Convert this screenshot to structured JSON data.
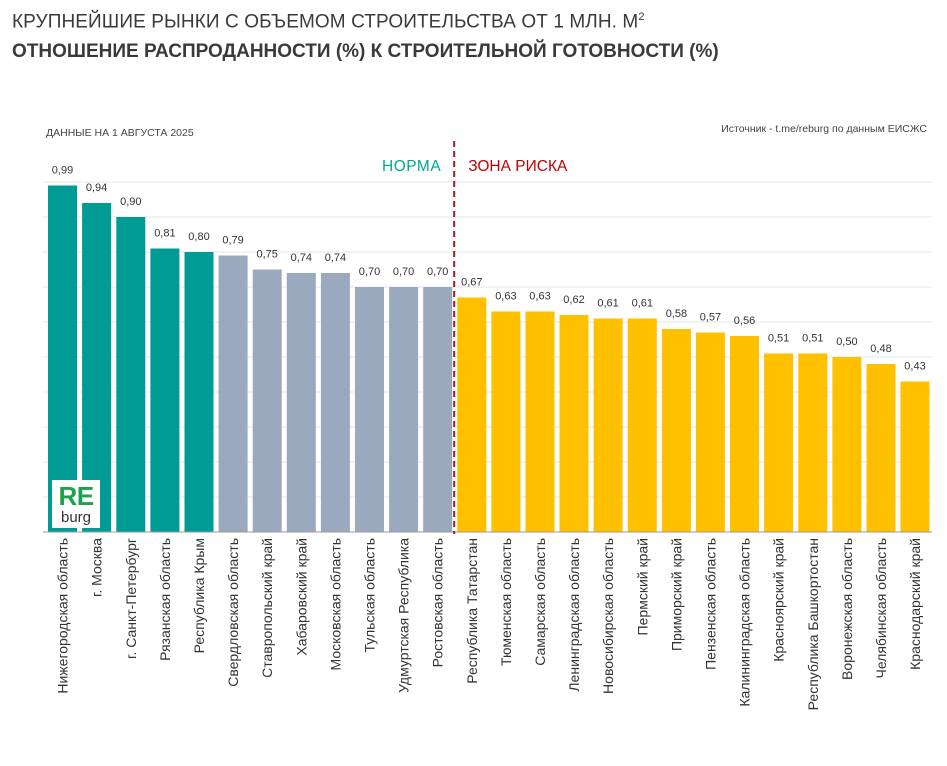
{
  "header": {
    "title_line1": "КРУПНЕЙШИЕ РЫНКИ С ОБЪЕМОМ СТРОИТЕЛЬСТВА ОТ 1 МЛН. М",
    "title_sup": "2",
    "title_line2": "ОТНОШЕНИЕ РАСПРОДАННОСТИ (%) К СТРОИТЕЛЬНОЙ ГОТОВНОСТИ (%)",
    "date_note": "ДАННЫЕ НА 1 АВГУСТА 2025",
    "source_note": "Источник - t.me/reburg по данным ЕИСЖС"
  },
  "logo": {
    "line1": "RE",
    "line2": "burg"
  },
  "colors": {
    "top": "#009B94",
    "norm": "#9AA9BE",
    "risk": "#FFC000",
    "norm_label": "#00A896",
    "risk_label": "#C00000",
    "grid": "#e6e6e6"
  },
  "chart_data": {
    "type": "bar",
    "title": "ОТНОШЕНИЕ РАСПРОДАННОСТИ (%) К СТРОИТЕЛЬНОЙ ГОТОВНОСТИ (%)",
    "xlabel": "",
    "ylabel": "",
    "ylim": [
      0,
      1.0
    ],
    "grid": true,
    "categories": [
      "Нижегородская область",
      "г. Москва",
      "г. Санкт-Петербург",
      "Рязанская область",
      "Республика Крым",
      "Свердловская область",
      "Ставропольский край",
      "Хабаровский край",
      "Московская область",
      "Тульская область",
      "Удмуртская Республика",
      "Ростовская область",
      "Республика Татарстан",
      "Тюменская область",
      "Самарская область",
      "Ленинградская область",
      "Новосибирская область",
      "Пермский край",
      "Приморский край",
      "Пензенская область",
      "Калининградская область",
      "Красноярский край",
      "Республика Башкортостан",
      "Воронежская область",
      "Челябинская область",
      "Краснодарский край"
    ],
    "values": [
      0.99,
      0.94,
      0.9,
      0.81,
      0.8,
      0.79,
      0.75,
      0.74,
      0.74,
      0.7,
      0.7,
      0.7,
      0.67,
      0.63,
      0.63,
      0.62,
      0.61,
      0.61,
      0.58,
      0.57,
      0.56,
      0.51,
      0.51,
      0.5,
      0.48,
      0.43
    ],
    "value_labels": [
      "0,99",
      "0,94",
      "0,90",
      "0,81",
      "0,80",
      "0,79",
      "0,75",
      "0,74",
      "0,74",
      "0,70",
      "0,70",
      "0,70",
      "0,67",
      "0,63",
      "0,63",
      "0,62",
      "0,61",
      "0,61",
      "0,58",
      "0,57",
      "0,56",
      "0,51",
      "0,51",
      "0,50",
      "0,48",
      "0,43"
    ],
    "groups": [
      "top",
      "top",
      "top",
      "top",
      "top",
      "norm",
      "norm",
      "norm",
      "norm",
      "norm",
      "norm",
      "norm",
      "risk",
      "risk",
      "risk",
      "risk",
      "risk",
      "risk",
      "risk",
      "risk",
      "risk",
      "risk",
      "risk",
      "risk",
      "risk",
      "risk"
    ],
    "annotations": {
      "norm_label": "НОРМА",
      "risk_label": "ЗОНА РИСКА"
    }
  }
}
